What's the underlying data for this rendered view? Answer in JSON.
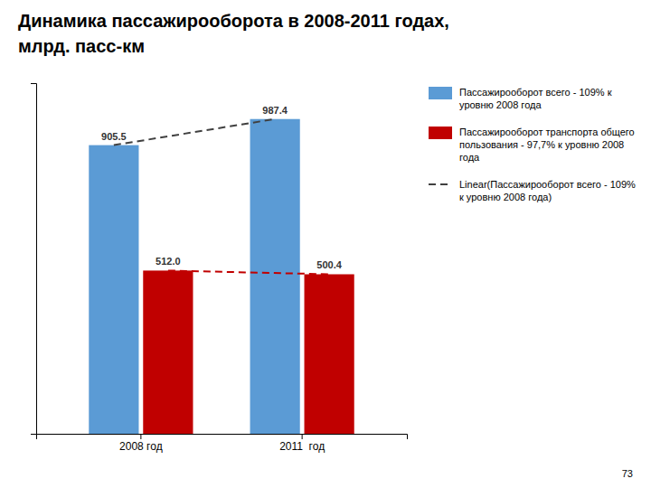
{
  "chart_data": {
    "type": "bar",
    "title": "Динамика пассажирооборота в 2008-2011 годах,",
    "subtitle": "млрд. пасс-км",
    "categories": [
      "2008 год",
      "2011  год"
    ],
    "series": [
      {
        "name": "Пассажирооборот всего - 109% к уровню 2008 года",
        "type": "bar",
        "color": "#5B9BD5",
        "values": [
          905.5,
          987.4
        ]
      },
      {
        "name": "Пассажирооборот транспорта общего пользования - 97,7% к уровню 2008 года",
        "type": "bar",
        "color": "#C00000",
        "values": [
          512.0,
          500.4
        ],
        "value_labels": [
          "512.0",
          "500.4"
        ]
      },
      {
        "name": "Linear(Пассажирооборот всего - 109% к уровню 2008 года)",
        "type": "line",
        "line_style": "dashed",
        "color": "#404040",
        "values": [
          905.5,
          987.4
        ]
      },
      {
        "type": "line",
        "line_style": "dashed",
        "color": "#C00000",
        "values": [
          512.0,
          500.4
        ]
      }
    ],
    "ylim": [
      0,
      1100
    ],
    "yticks": [],
    "tick_labels": "x",
    "data_labels": true,
    "annotations": [
      "73"
    ]
  }
}
